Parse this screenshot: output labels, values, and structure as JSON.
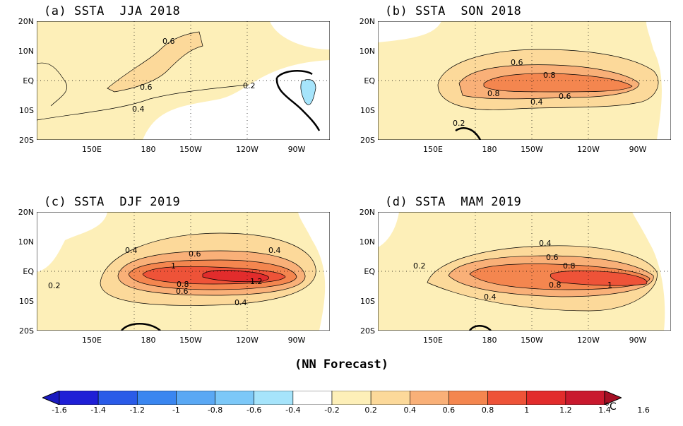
{
  "panels": [
    {
      "id": "a",
      "title": "(a) SSTA  JJA 2018",
      "labels": [
        "0.6",
        "0.6",
        "0.4",
        "0.2"
      ]
    },
    {
      "id": "b",
      "title": "(b) SSTA  SON 2018",
      "labels": [
        "0.6",
        "0.8",
        "0.8",
        "0.6",
        "0.4",
        "0.2"
      ]
    },
    {
      "id": "c",
      "title": "(c) SSTA  DJF 2019",
      "labels": [
        "0.4",
        "0.6",
        "0.4",
        "1",
        "1.2",
        "0.8",
        "0.6",
        "0.4",
        "0.2"
      ]
    },
    {
      "id": "d",
      "title": "(d) SSTA  MAM 2019",
      "labels": [
        "0.4",
        "0.6",
        "0.8",
        "0.2",
        "0.8",
        "1",
        "0.4"
      ]
    }
  ],
  "lat_labels": [
    "20N",
    "10N",
    "EQ",
    "10S",
    "20S"
  ],
  "lon_labels": [
    "150E",
    "180",
    "150W",
    "120W",
    "90W"
  ],
  "caption": "(NN Forecast)",
  "colorbar": {
    "labels": [
      "-1.6",
      "-1.4",
      "-1.2",
      "-1",
      "-0.8",
      "-0.6",
      "-0.4",
      "-0.2",
      "0.2",
      "0.4",
      "0.6",
      "0.8",
      "1",
      "1.2",
      "1.4",
      "1.6"
    ],
    "colors": [
      "#1f1fd6",
      "#2a5be8",
      "#3a86f0",
      "#5aa8f4",
      "#7cc8f8",
      "#a6e4fb",
      "#ffffff",
      "#fdefb8",
      "#fcd99a",
      "#f9b078",
      "#f4864f",
      "#ee5338",
      "#e22c2c",
      "#c9192e"
    ],
    "unit": "°C"
  }
}
